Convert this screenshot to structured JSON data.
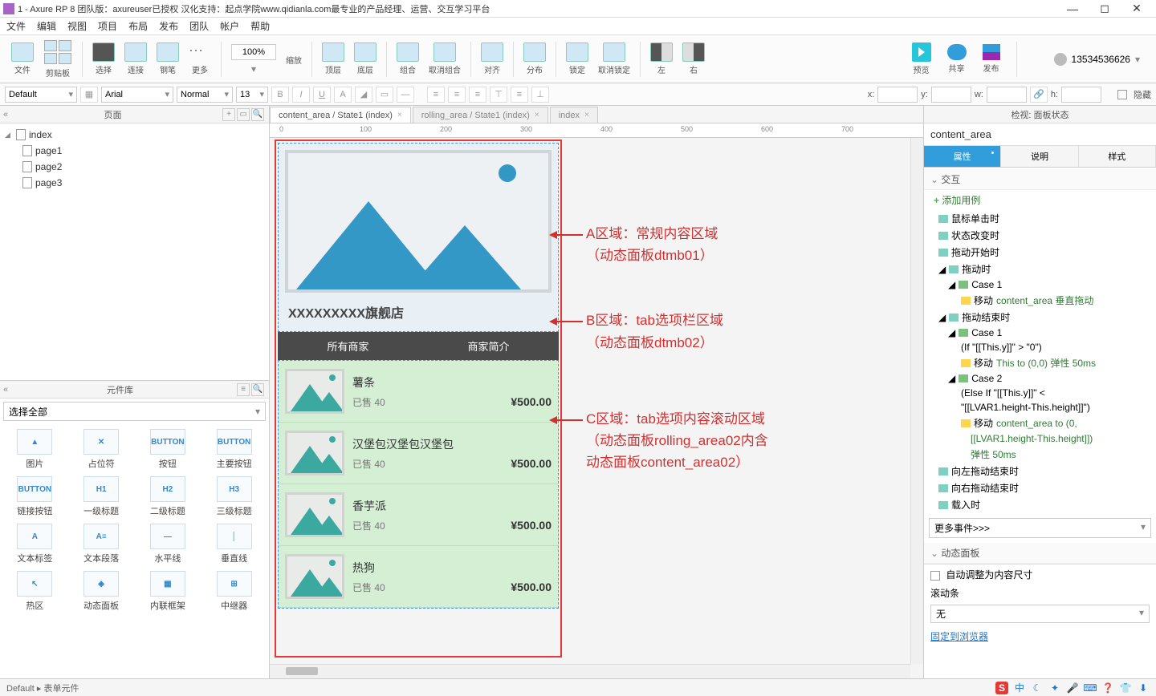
{
  "titlebar": {
    "text": "1 - Axure RP 8 团队版：axureuser已授权 汉化支持：起点学院www.qidianla.com最专业的产品经理、运营、交互学习平台"
  },
  "menubar": [
    "文件",
    "编辑",
    "视图",
    "项目",
    "布局",
    "发布",
    "团队",
    "帐户",
    "帮助"
  ],
  "toolbar": {
    "groups": [
      {
        "label": "文件"
      },
      {
        "label": "剪贴板"
      },
      {
        "label": "选择"
      },
      {
        "label": "连接"
      },
      {
        "label": "钢笔"
      },
      {
        "label": "更多"
      }
    ],
    "zoom": "100%",
    "groups2": [
      {
        "label": "缩放"
      },
      {
        "label": "顶层"
      },
      {
        "label": "底层"
      },
      {
        "label": "组合"
      },
      {
        "label": "取消组合"
      },
      {
        "label": "对齐"
      },
      {
        "label": "分布"
      },
      {
        "label": "锁定"
      },
      {
        "label": "取消锁定"
      },
      {
        "label": "左"
      },
      {
        "label": "右"
      }
    ],
    "right": {
      "preview": "预览",
      "share": "共享",
      "publish": "发布"
    },
    "user": "13534536626"
  },
  "formatbar": {
    "preset": "Default",
    "font": "Arial",
    "weight": "Normal",
    "size": "13",
    "x_label": "x:",
    "y_label": "y:",
    "w_label": "w:",
    "h_label": "h:",
    "hidden": "隐藏"
  },
  "pages_panel": {
    "title": "页面",
    "root": "index",
    "children": [
      "page1",
      "page2",
      "page3"
    ]
  },
  "lib_panel": {
    "title": "元件库",
    "select": "选择全部",
    "items": [
      {
        "icon": "▲",
        "label": "图片"
      },
      {
        "icon": "✕",
        "label": "占位符"
      },
      {
        "icon": "BUTTON",
        "label": "按钮"
      },
      {
        "icon": "BUTTON",
        "label": "主要按钮"
      },
      {
        "icon": "BUTTON",
        "label": "链接按钮"
      },
      {
        "icon": "H1",
        "label": "一级标题"
      },
      {
        "icon": "H2",
        "label": "二级标题"
      },
      {
        "icon": "H3",
        "label": "三级标题"
      },
      {
        "icon": "A",
        "label": "文本标签"
      },
      {
        "icon": "A≡",
        "label": "文本段落"
      },
      {
        "icon": "—",
        "label": "水平线"
      },
      {
        "icon": "│",
        "label": "垂直线"
      },
      {
        "icon": "↖",
        "label": "热区"
      },
      {
        "icon": "◈",
        "label": "动态面板"
      },
      {
        "icon": "▦",
        "label": "内联框架"
      },
      {
        "icon": "⊞",
        "label": "中继器"
      }
    ]
  },
  "canvas": {
    "tabs": [
      {
        "label": "content_area / State1 (index)",
        "active": true
      },
      {
        "label": "rolling_area / State1 (index)",
        "active": false
      },
      {
        "label": "index",
        "active": false
      }
    ],
    "ruler_ticks": [
      "0",
      "100",
      "200",
      "300",
      "400",
      "500",
      "600",
      "700"
    ],
    "shop_title": "XXXXXXXXX旗舰店",
    "tab_all": "所有商家",
    "tab_intro": "商家简介",
    "products": [
      {
        "name": "薯条",
        "sold": "已售 40",
        "price": "¥500.00"
      },
      {
        "name": "汉堡包汉堡包汉堡包",
        "sold": "已售 40",
        "price": "¥500.00"
      },
      {
        "name": "香芋派",
        "sold": "已售 40",
        "price": "¥500.00"
      },
      {
        "name": "热狗",
        "sold": "已售 40",
        "price": "¥500.00"
      }
    ],
    "annotations": {
      "a1": "A区域：常规内容区域",
      "a2": "（动态面板dtmb01）",
      "b1": "B区域：tab选项栏区域",
      "b2": "（动态面板dtmb02）",
      "c1": "C区域：tab选项内容滚动区域",
      "c2": "（动态面板rolling_area02内含",
      "c3": "动态面板content_area02）"
    }
  },
  "inspector": {
    "header": "检视: 面板状态",
    "name": "content_area",
    "tabs": {
      "props": "属性",
      "notes": "说明",
      "style": "样式"
    },
    "section_interact": "交互",
    "add_case": "添加用例",
    "events": {
      "click": "鼠标单击时",
      "state_change": "状态改变时",
      "drag_start": "拖动开始时",
      "dragging": "拖动时",
      "case1": "Case 1",
      "move1": "移动",
      "move1_target": "content_area 垂直拖动",
      "drag_end": "拖动结束时",
      "case1b": "Case 1",
      "cond1": "(If \"[[This.y]]\" > \"0\")",
      "move2": "移动",
      "move2_target": "This to (0,0) 弹性 50ms",
      "case2": "Case 2",
      "cond2a": "(Else If \"[[This.y]]\" <",
      "cond2b": "\"[[LVAR1.height-This.height]]\")",
      "move3": "移动",
      "move3_target": "content_area to (0,",
      "move3b": "[[LVAR1.height-This.height]])",
      "move3c": "弹性 50ms",
      "swipe_left_end": "向左拖动结束时",
      "swipe_right_end": "向右拖动结束时",
      "load": "载入时"
    },
    "more_events": "更多事件>>>",
    "dp_section": "动态面板",
    "auto_fit": "自动调整为内容尺寸",
    "scrollbar_label": "滚动条",
    "scrollbar_value": "无",
    "pin": "固定到浏览器"
  },
  "statusbar": {
    "left": "Default ▸ 表单元件",
    "ime": [
      "中",
      "☾",
      "✦",
      "🎤",
      "⌨",
      "❓",
      "👕",
      "⬇"
    ]
  },
  "colors": {
    "accent": "#319ddb",
    "red": "#d32f2f",
    "green": "#2e7d32",
    "teal": "#3ba9a0",
    "blue_mnt": "#3498c7",
    "dark_tab": "#4a4a4a",
    "list_bg": "#d5efd5"
  }
}
